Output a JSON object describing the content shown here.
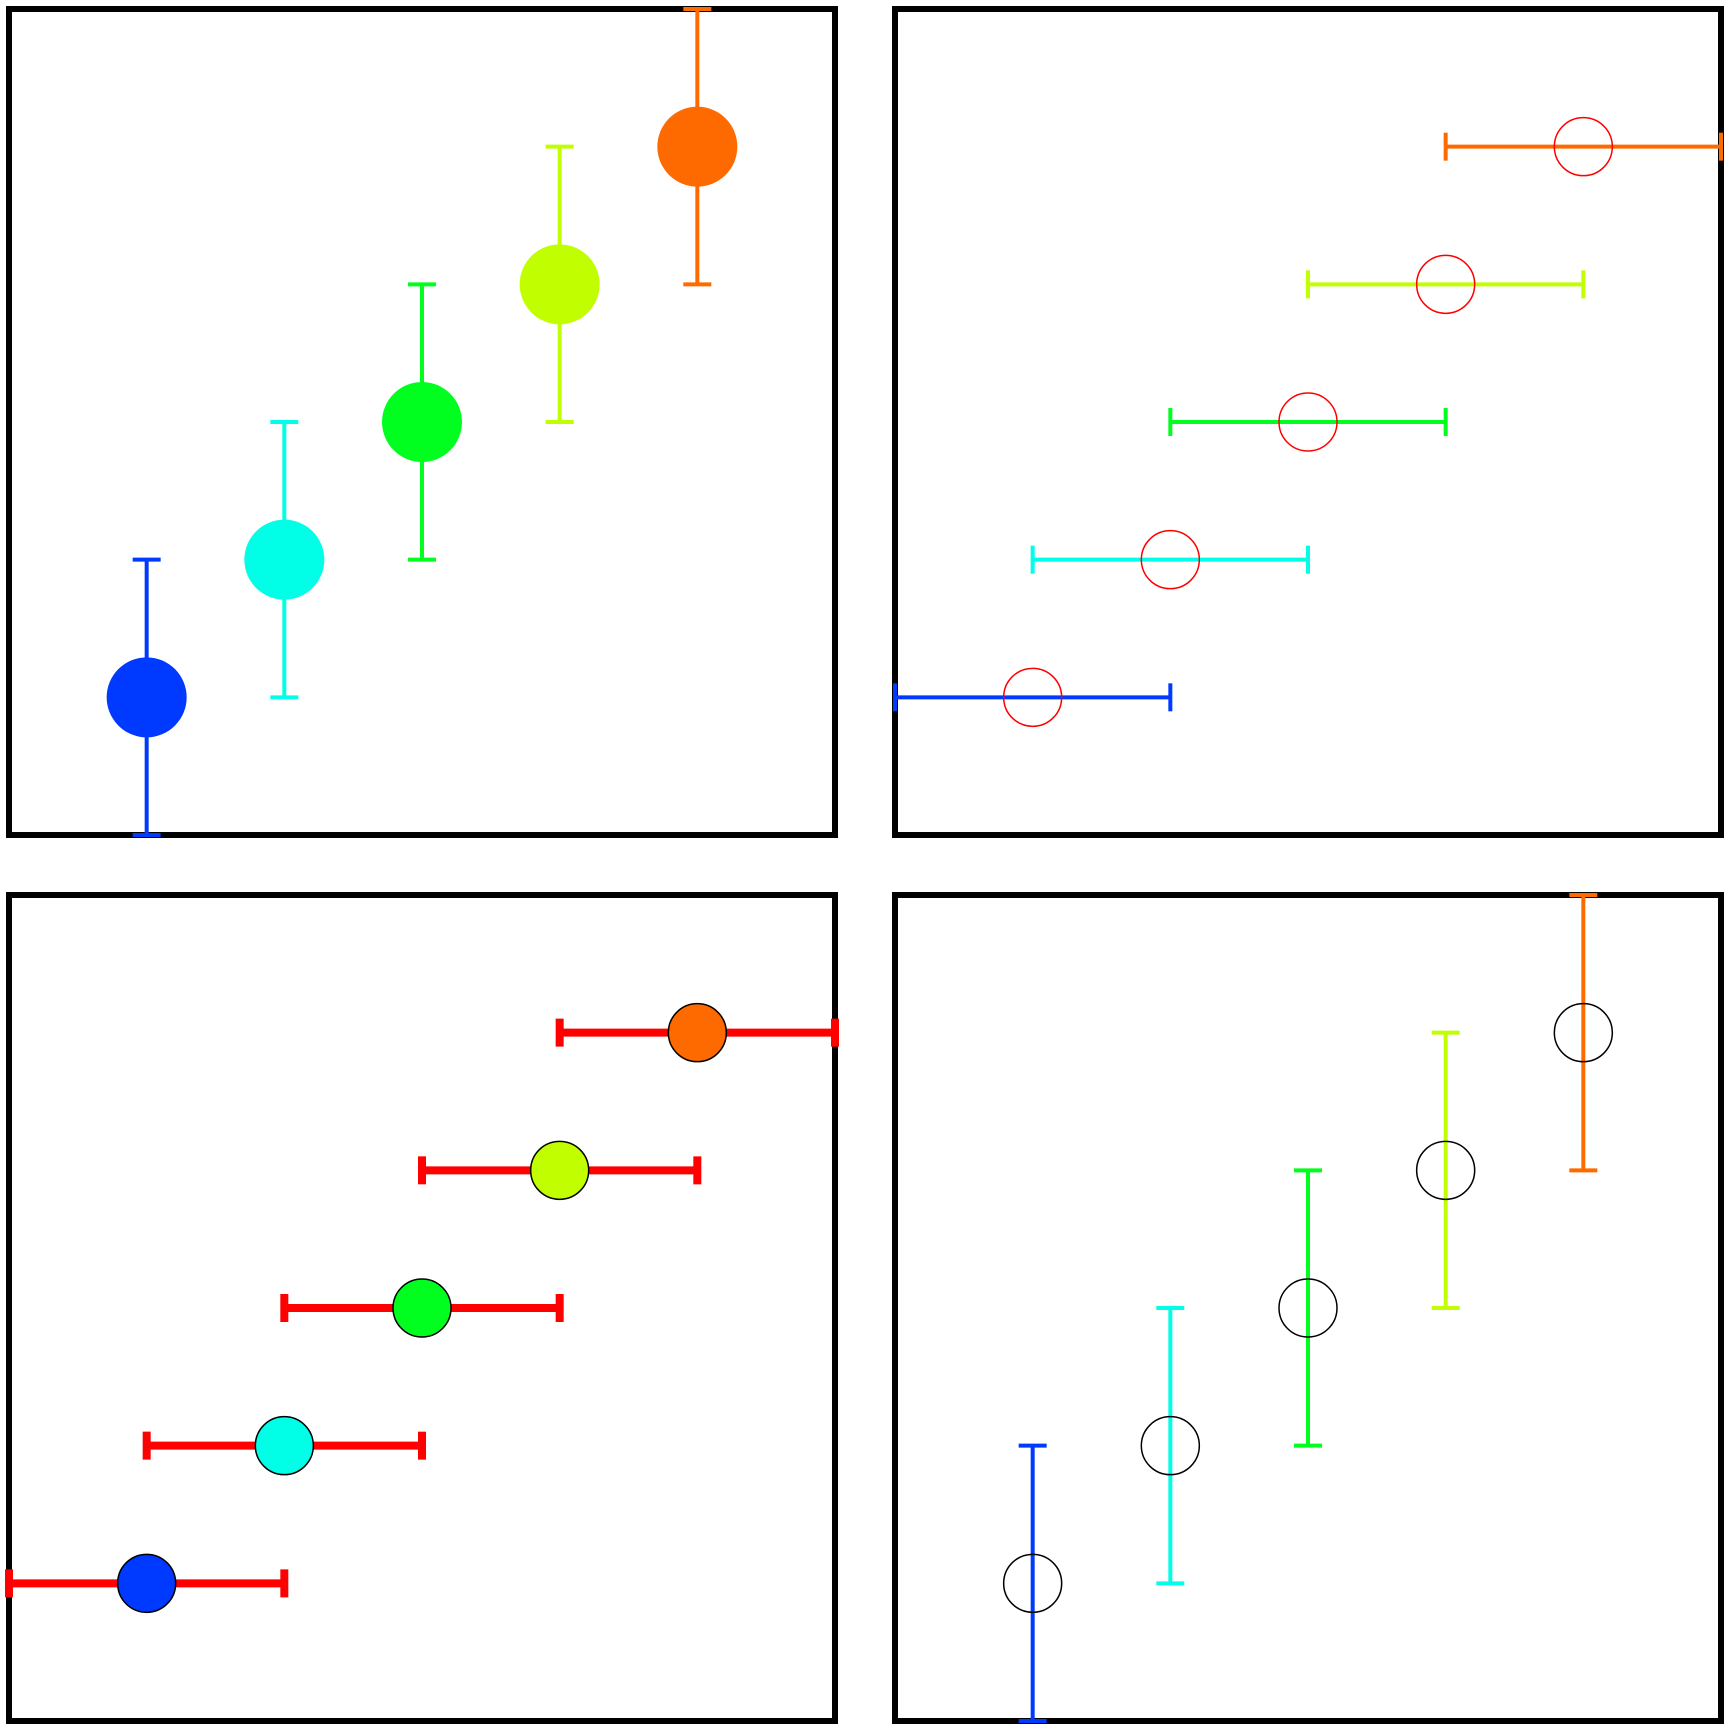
{
  "chart_data": [
    {
      "type": "scatter",
      "panel": "top-left",
      "x": [
        1,
        2,
        3,
        4,
        5
      ],
      "y": [
        1,
        2,
        3,
        4,
        5
      ],
      "y_err": [
        1,
        1,
        1,
        1,
        1
      ],
      "x_err": null,
      "xlim": [
        0,
        6
      ],
      "ylim": [
        0,
        6
      ],
      "marker": "filled-circle",
      "errorbar_color": "point",
      "point_colors": [
        "#0039ff",
        "#00ffe6",
        "#00ff1f",
        "#c1ff00",
        "#ff6a00"
      ],
      "grid": false
    },
    {
      "type": "scatter",
      "panel": "top-right",
      "x": [
        1,
        2,
        3,
        4,
        5
      ],
      "y": [
        1,
        2,
        3,
        4,
        5
      ],
      "y_err": null,
      "x_err": [
        1,
        1,
        1,
        1,
        1
      ],
      "xlim": [
        0,
        6
      ],
      "ylim": [
        0,
        6
      ],
      "marker": "hollow-circle",
      "marker_edge_color": "#ff0000",
      "errorbar_color": "point",
      "point_colors": [
        "#0039ff",
        "#00ffe6",
        "#00ff1f",
        "#c1ff00",
        "#ff6a00"
      ],
      "grid": false
    },
    {
      "type": "scatter",
      "panel": "bottom-left",
      "x": [
        1,
        2,
        3,
        4,
        5
      ],
      "y": [
        1,
        2,
        3,
        4,
        5
      ],
      "y_err": null,
      "x_err": [
        1,
        1,
        1,
        1,
        1
      ],
      "xlim": [
        0,
        6
      ],
      "ylim": [
        0,
        6
      ],
      "marker": "filled-circle-outlined",
      "marker_edge_color": "#000000",
      "errorbar_color": "#ff0000",
      "point_colors": [
        "#0039ff",
        "#00ffe6",
        "#00ff1f",
        "#c1ff00",
        "#ff6a00"
      ],
      "grid": false
    },
    {
      "type": "scatter",
      "panel": "bottom-right",
      "x": [
        1,
        2,
        3,
        4,
        5
      ],
      "y": [
        1,
        2,
        3,
        4,
        5
      ],
      "y_err": [
        1,
        1,
        1,
        1,
        1
      ],
      "x_err": null,
      "xlim": [
        0,
        6
      ],
      "ylim": [
        0,
        6
      ],
      "marker": "hollow-circle",
      "marker_edge_color": "#000000",
      "errorbar_color": "point",
      "point_colors": [
        "#0039ff",
        "#00ffe6",
        "#00ff1f",
        "#c1ff00",
        "#ff6a00"
      ],
      "grid": false
    }
  ]
}
